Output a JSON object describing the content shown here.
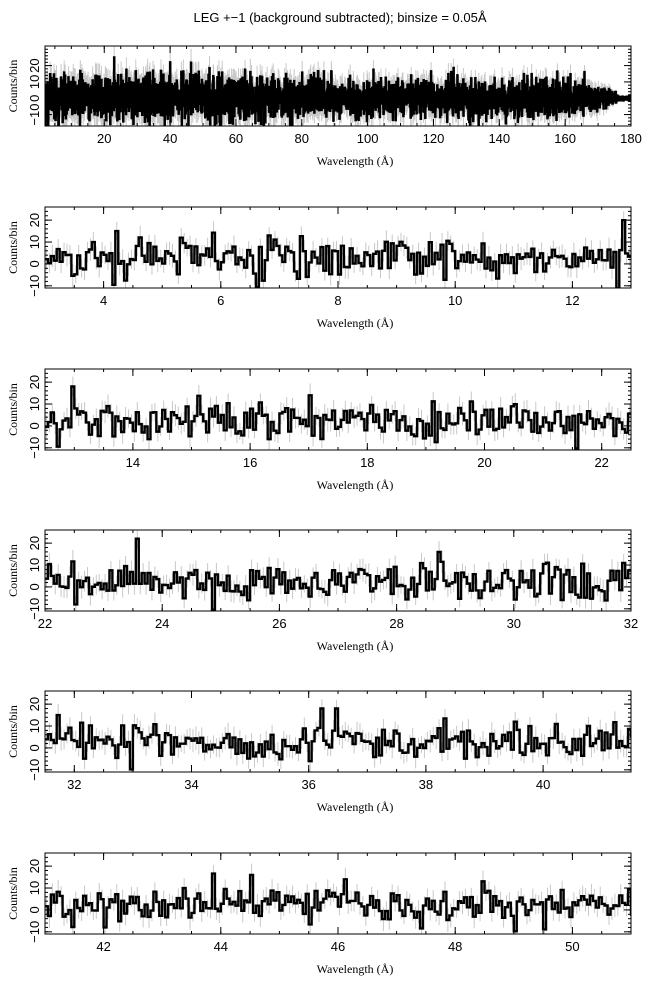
{
  "figure": {
    "title": "LEG +−1 (background subtracted); binsize = 0.05Å"
  },
  "colors": {
    "data_line": "#000000",
    "error_bars": "#c8c8c8",
    "background": "#ffffff"
  },
  "chart_data": [
    {
      "type": "line",
      "style": "step",
      "xlabel": "Wavelength (Å)",
      "ylabel": "Counts/bin",
      "xlim": [
        2,
        180
      ],
      "ylim": [
        -17,
        32
      ],
      "xticks": [
        20,
        40,
        60,
        80,
        100,
        120,
        140,
        160,
        180
      ],
      "yticks": [
        -10,
        0,
        10,
        20
      ],
      "ytick_labels": [
        "−10",
        "0",
        "10",
        "20"
      ],
      "grid": false,
      "legend": "none",
      "bin_width": 0.05,
      "error_bars": true,
      "series_profile": {
        "amplitude_envelope": [
          {
            "x": 2,
            "sigma": 7
          },
          {
            "x": 60,
            "sigma": 6.5
          },
          {
            "x": 100,
            "sigma": 5.5
          },
          {
            "x": 150,
            "sigma": 5.5
          },
          {
            "x": 170,
            "sigma": 4.5
          },
          {
            "x": 176,
            "sigma": 1
          }
        ],
        "spikes": [
          {
            "x": 23,
            "y": 25
          },
          {
            "x": 40,
            "y": 22
          },
          {
            "x": 136,
            "y": -14
          }
        ]
      }
    },
    {
      "type": "line",
      "style": "step",
      "xlabel": "Wavelength (Å)",
      "ylabel": "Counts/bin",
      "xlim": [
        3,
        13
      ],
      "ylim": [
        -11,
        26
      ],
      "xticks": [
        4,
        6,
        8,
        10,
        12
      ],
      "yticks": [
        -10,
        0,
        10,
        20
      ],
      "ytick_labels": [
        "−10",
        "0",
        "10",
        "20"
      ],
      "grid": false,
      "legend": "none",
      "bin_width": 0.05,
      "error_bars": true,
      "spikes": [
        {
          "x": 4.22,
          "y": 15
        },
        {
          "x": 12.85,
          "y": 20
        },
        {
          "x": 3.8,
          "y": 10
        }
      ]
    },
    {
      "type": "line",
      "style": "step",
      "xlabel": "Wavelength (Å)",
      "ylabel": "Counts/bin",
      "xlim": [
        12.5,
        22.5
      ],
      "ylim": [
        -11,
        26
      ],
      "xticks": [
        14,
        16,
        18,
        20,
        22
      ],
      "yticks": [
        -10,
        0,
        10,
        20
      ],
      "ytick_labels": [
        "−10",
        "0",
        "10",
        "20"
      ],
      "grid": false,
      "legend": "none",
      "bin_width": 0.05,
      "error_bars": true,
      "spikes": [
        {
          "x": 12.95,
          "y": 18
        },
        {
          "x": 17.0,
          "y": 14
        },
        {
          "x": 17.2,
          "y": -6
        }
      ]
    },
    {
      "type": "line",
      "style": "step",
      "xlabel": "Wavelength (Å)",
      "ylabel": "Counts/bin",
      "xlim": [
        22,
        32
      ],
      "ylim": [
        -11,
        26
      ],
      "xticks": [
        22,
        24,
        26,
        28,
        30,
        32
      ],
      "yticks": [
        -10,
        0,
        10,
        20
      ],
      "ytick_labels": [
        "−10",
        "0",
        "10",
        "20"
      ],
      "grid": false,
      "legend": "none",
      "bin_width": 0.05,
      "error_bars": true,
      "spikes": [
        {
          "x": 23.55,
          "y": 22
        },
        {
          "x": 28.7,
          "y": 16
        },
        {
          "x": 22.5,
          "y": -8
        }
      ]
    },
    {
      "type": "line",
      "style": "step",
      "xlabel": "Wavelength (Å)",
      "ylabel": "Counts/bin",
      "xlim": [
        31.5,
        41.5
      ],
      "ylim": [
        -11,
        26
      ],
      "xticks": [
        32,
        34,
        36,
        38,
        40
      ],
      "yticks": [
        -10,
        0,
        10,
        20
      ],
      "ytick_labels": [
        "−10",
        "0",
        "10",
        "20"
      ],
      "grid": false,
      "legend": "none",
      "bin_width": 0.05,
      "error_bars": true,
      "spikes": [
        {
          "x": 36.2,
          "y": 18
        },
        {
          "x": 36.45,
          "y": 18
        },
        {
          "x": 31.7,
          "y": 15
        }
      ]
    },
    {
      "type": "line",
      "style": "step",
      "xlabel": "Wavelength (Å)",
      "ylabel": "Counts/bin",
      "xlim": [
        41,
        51
      ],
      "ylim": [
        -11,
        26
      ],
      "xticks": [
        42,
        44,
        46,
        48,
        50
      ],
      "yticks": [
        -10,
        0,
        10,
        20
      ],
      "ytick_labels": [
        "−10",
        "0",
        "10",
        "20"
      ],
      "grid": false,
      "legend": "none",
      "bin_width": 0.05,
      "error_bars": true,
      "spikes": [
        {
          "x": 44.5,
          "y": 16
        },
        {
          "x": 42.0,
          "y": -8
        },
        {
          "x": 46.1,
          "y": 14
        }
      ]
    }
  ]
}
